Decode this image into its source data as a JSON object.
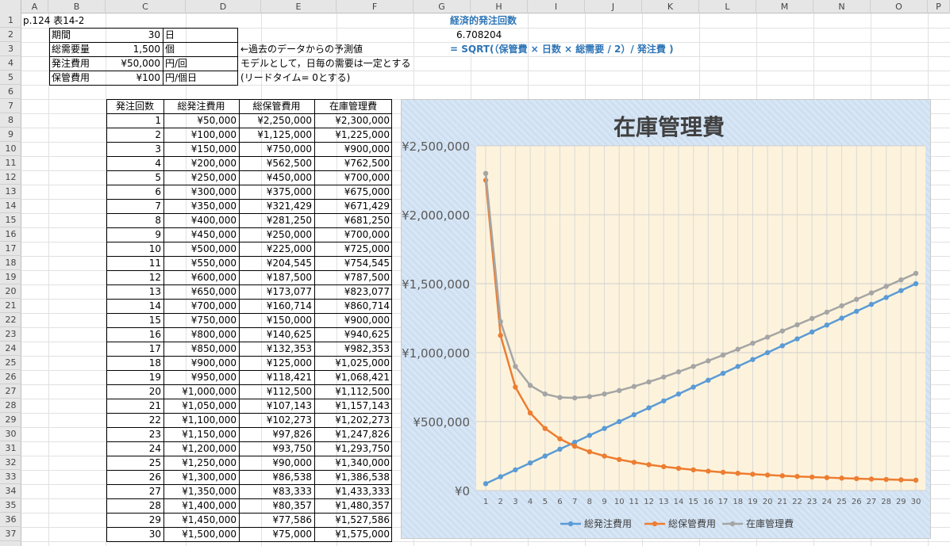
{
  "columns": [
    "A",
    "B",
    "C",
    "D",
    "E",
    "F",
    "G",
    "H",
    "I",
    "J",
    "K",
    "L",
    "M",
    "N",
    "O",
    "P"
  ],
  "rows": [
    "1",
    "2",
    "3",
    "4",
    "5",
    "6",
    "7",
    "8",
    "9",
    "10",
    "11",
    "12",
    "13",
    "14",
    "15",
    "16",
    "17",
    "18",
    "19",
    "20",
    "21",
    "22",
    "23",
    "24",
    "25",
    "26",
    "27",
    "28",
    "29",
    "30",
    "31",
    "32",
    "33",
    "34",
    "35",
    "36",
    "37"
  ],
  "header_cell": "p.124 表14-2",
  "params": [
    {
      "label": "期間",
      "value": "30",
      "unit": "日"
    },
    {
      "label": "総需要量",
      "value": "1,500",
      "unit": "個"
    },
    {
      "label": "発注費用",
      "value": "¥50,000",
      "unit": "円/回"
    },
    {
      "label": "保管費用",
      "value": "¥100",
      "unit": "円/個日"
    }
  ],
  "notes": [
    "←過去のデータからの予測値",
    "モデルとして，日毎の需要は一定とする",
    "(リードタイム= 0とする)"
  ],
  "eoq": {
    "title": "経済的発注回数",
    "value": "6.708204",
    "formula": "= SQRT(（保管費 × 日数 × 総需要 / 2）/ 発注費 )"
  },
  "table": {
    "headers": [
      "発注回数",
      "総発注費用",
      "総保管費用",
      "在庫管理費"
    ],
    "rows": [
      [
        "1",
        "¥50,000",
        "¥2,250,000",
        "¥2,300,000"
      ],
      [
        "2",
        "¥100,000",
        "¥1,125,000",
        "¥1,225,000"
      ],
      [
        "3",
        "¥150,000",
        "¥750,000",
        "¥900,000"
      ],
      [
        "4",
        "¥200,000",
        "¥562,500",
        "¥762,500"
      ],
      [
        "5",
        "¥250,000",
        "¥450,000",
        "¥700,000"
      ],
      [
        "6",
        "¥300,000",
        "¥375,000",
        "¥675,000"
      ],
      [
        "7",
        "¥350,000",
        "¥321,429",
        "¥671,429"
      ],
      [
        "8",
        "¥400,000",
        "¥281,250",
        "¥681,250"
      ],
      [
        "9",
        "¥450,000",
        "¥250,000",
        "¥700,000"
      ],
      [
        "10",
        "¥500,000",
        "¥225,000",
        "¥725,000"
      ],
      [
        "11",
        "¥550,000",
        "¥204,545",
        "¥754,545"
      ],
      [
        "12",
        "¥600,000",
        "¥187,500",
        "¥787,500"
      ],
      [
        "13",
        "¥650,000",
        "¥173,077",
        "¥823,077"
      ],
      [
        "14",
        "¥700,000",
        "¥160,714",
        "¥860,714"
      ],
      [
        "15",
        "¥750,000",
        "¥150,000",
        "¥900,000"
      ],
      [
        "16",
        "¥800,000",
        "¥140,625",
        "¥940,625"
      ],
      [
        "17",
        "¥850,000",
        "¥132,353",
        "¥982,353"
      ],
      [
        "18",
        "¥900,000",
        "¥125,000",
        "¥1,025,000"
      ],
      [
        "19",
        "¥950,000",
        "¥118,421",
        "¥1,068,421"
      ],
      [
        "20",
        "¥1,000,000",
        "¥112,500",
        "¥1,112,500"
      ],
      [
        "21",
        "¥1,050,000",
        "¥107,143",
        "¥1,157,143"
      ],
      [
        "22",
        "¥1,100,000",
        "¥102,273",
        "¥1,202,273"
      ],
      [
        "23",
        "¥1,150,000",
        "¥97,826",
        "¥1,247,826"
      ],
      [
        "24",
        "¥1,200,000",
        "¥93,750",
        "¥1,293,750"
      ],
      [
        "25",
        "¥1,250,000",
        "¥90,000",
        "¥1,340,000"
      ],
      [
        "26",
        "¥1,300,000",
        "¥86,538",
        "¥1,386,538"
      ],
      [
        "27",
        "¥1,350,000",
        "¥83,333",
        "¥1,433,333"
      ],
      [
        "28",
        "¥1,400,000",
        "¥80,357",
        "¥1,480,357"
      ],
      [
        "29",
        "¥1,450,000",
        "¥77,586",
        "¥1,527,586"
      ],
      [
        "30",
        "¥1,500,000",
        "¥75,000",
        "¥1,575,000"
      ]
    ]
  },
  "colors": {
    "order": "#5b9bd5",
    "holding": "#ed7d31",
    "total": "#a5a5a5",
    "plot_bg": "#fdf3dc",
    "title": "#404040"
  },
  "chart_data": {
    "type": "line",
    "title": "在庫管理費",
    "x": [
      1,
      2,
      3,
      4,
      5,
      6,
      7,
      8,
      9,
      10,
      11,
      12,
      13,
      14,
      15,
      16,
      17,
      18,
      19,
      20,
      21,
      22,
      23,
      24,
      25,
      26,
      27,
      28,
      29,
      30
    ],
    "ylim": [
      0,
      2500000
    ],
    "yticks": [
      0,
      500000,
      1000000,
      1500000,
      2000000,
      2500000
    ],
    "ytick_labels": [
      "¥0",
      "¥500,000",
      "¥1,000,000",
      "¥1,500,000",
      "¥2,000,000",
      "¥2,500,000"
    ],
    "grid": true,
    "legend": "bottom",
    "series": [
      {
        "name": "総発注費用",
        "values": [
          50000,
          100000,
          150000,
          200000,
          250000,
          300000,
          350000,
          400000,
          450000,
          500000,
          550000,
          600000,
          650000,
          700000,
          750000,
          800000,
          850000,
          900000,
          950000,
          1000000,
          1050000,
          1100000,
          1150000,
          1200000,
          1250000,
          1300000,
          1350000,
          1400000,
          1450000,
          1500000
        ]
      },
      {
        "name": "総保管費用",
        "values": [
          2250000,
          1125000,
          750000,
          562500,
          450000,
          375000,
          321429,
          281250,
          250000,
          225000,
          204545,
          187500,
          173077,
          160714,
          150000,
          140625,
          132353,
          125000,
          118421,
          112500,
          107143,
          102273,
          97826,
          93750,
          90000,
          86538,
          83333,
          80357,
          77586,
          75000
        ]
      },
      {
        "name": "在庫管理費",
        "values": [
          2300000,
          1225000,
          900000,
          762500,
          700000,
          675000,
          671429,
          681250,
          700000,
          725000,
          754545,
          787500,
          823077,
          860714,
          900000,
          940625,
          982353,
          1025000,
          1068421,
          1112500,
          1157143,
          1202273,
          1247826,
          1293750,
          1340000,
          1386538,
          1433333,
          1480357,
          1527586,
          1575000
        ]
      }
    ]
  }
}
